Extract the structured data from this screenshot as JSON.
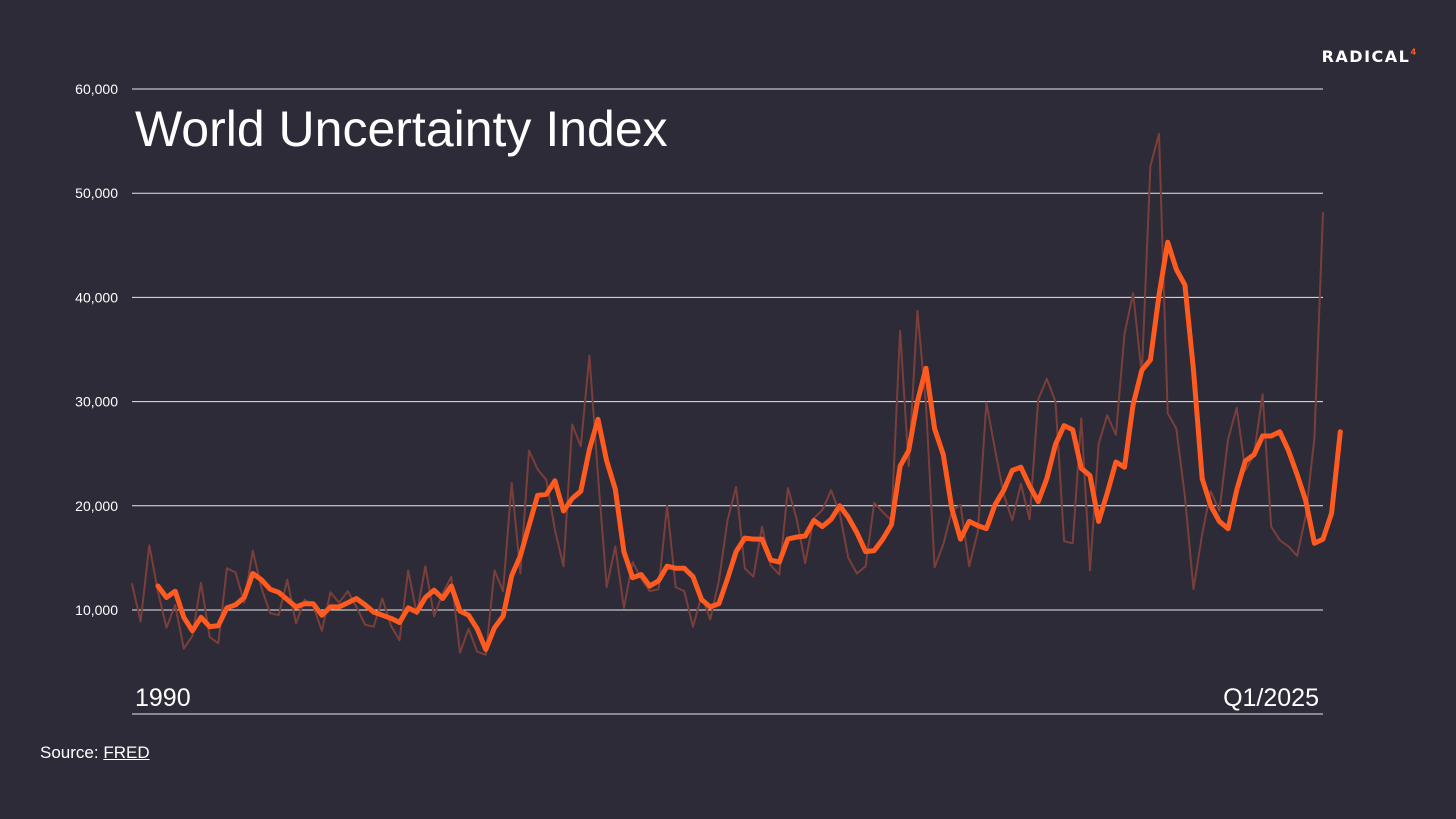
{
  "brand": {
    "logo_text": "RADICAL",
    "logo_mark": "⁴"
  },
  "source": {
    "label": "Source: ",
    "link_text": "FRED"
  },
  "colors": {
    "background": "#2c2b37",
    "smoothed_line": "#ff5a1f",
    "raw_line": "#7a3f3b",
    "grid": "#e8e8e8",
    "text": "#ffffff"
  },
  "chart_data": {
    "type": "line",
    "title": "World Uncertainty Index",
    "x_start_label": "1990",
    "x_end_label": "Q1/2025",
    "ylim": [
      3500,
      60000
    ],
    "yticks": [
      10000,
      20000,
      30000,
      40000,
      50000,
      60000
    ],
    "ytick_labels": [
      "10,000",
      "20,000",
      "30,000",
      "40,000",
      "50,000",
      "60,000"
    ],
    "grid": "horizontal",
    "legend": "none",
    "series": [
      {
        "style": "raw-thin",
        "values": [
          12500,
          8900,
          16200,
          11800,
          8300,
          10500,
          6300,
          7500,
          12600,
          7400,
          6800,
          14000,
          13600,
          10700,
          15700,
          12100,
          9700,
          9500,
          12900,
          8700,
          11000,
          10400,
          8000,
          11700,
          10700,
          11800,
          10300,
          8600,
          8400,
          11100,
          8500,
          7100,
          13800,
          9600,
          14200,
          9400,
          11600,
          13200,
          5900,
          8200,
          6000,
          5700,
          13800,
          11800,
          22200,
          13500,
          25300,
          23500,
          22500,
          17700,
          14200,
          27800,
          25700,
          34400,
          22900,
          12200,
          16100,
          10200,
          14600,
          13000,
          11800,
          12000,
          20000,
          12200,
          11800,
          8400,
          11400,
          9100,
          12800,
          18600,
          21800,
          14000,
          13200,
          18000,
          14300,
          13400,
          21700,
          18800,
          14500,
          18800,
          19600,
          21500,
          19300,
          15000,
          13500,
          14200,
          20300,
          19400,
          18600,
          36800,
          23800,
          38700,
          29700,
          14100,
          16300,
          19500,
          20100,
          14200,
          17500,
          29900,
          25400,
          21100,
          18600,
          22100,
          18700,
          30200,
          32200,
          30000,
          16600,
          16400,
          28400,
          13800,
          25900,
          28700,
          26800,
          36500,
          40400,
          32600,
          52600,
          55700,
          28900,
          27400,
          20900,
          12000,
          17300,
          21400,
          19500,
          26400,
          29400,
          23400,
          24900,
          30700,
          18000,
          16700,
          16100,
          15200,
          19000,
          26500,
          48100
        ]
      },
      {
        "style": "smoothed-thick",
        "start_index": 3,
        "values": [
          12300,
          11200,
          11800,
          9300,
          8000,
          9300,
          8400,
          8500,
          10200,
          10500,
          11200,
          13500,
          12900,
          12000,
          11700,
          11000,
          10300,
          10600,
          10600,
          9500,
          10300,
          10300,
          10700,
          11100,
          10500,
          9800,
          9500,
          9200,
          8800,
          10200,
          9800,
          11200,
          11900,
          11100,
          12300,
          9900,
          9500,
          8200,
          6200,
          8300,
          9400,
          13300,
          15200,
          18100,
          21000,
          21100,
          22400,
          19500,
          20700,
          21400,
          25400,
          28300,
          24300,
          21600,
          15600,
          13100,
          13400,
          12300,
          12800,
          14200,
          14000,
          14000,
          13200,
          11000,
          10300,
          10600,
          13000,
          15600,
          16900,
          16800,
          16800,
          14800,
          14600,
          16800,
          17000,
          17100,
          18600,
          18000,
          18700,
          20000,
          18900,
          17400,
          15600,
          15700,
          16800,
          18200,
          23800,
          25300,
          30000,
          33200,
          27400,
          24900,
          19700,
          16800,
          18500,
          18100,
          17800,
          20100,
          21500,
          23400,
          23700,
          21900,
          20400,
          22600,
          25900,
          27700,
          27300,
          23600,
          22900,
          18500,
          21200,
          24200,
          23700,
          29700,
          33000,
          34000,
          40200,
          45300,
          42700,
          41200,
          33000,
          22600,
          20000,
          18500,
          17800,
          21500,
          24300,
          24900,
          26700,
          26700,
          27100,
          25300,
          23000,
          20500,
          16400,
          16800,
          19300,
          27100
        ]
      }
    ]
  }
}
